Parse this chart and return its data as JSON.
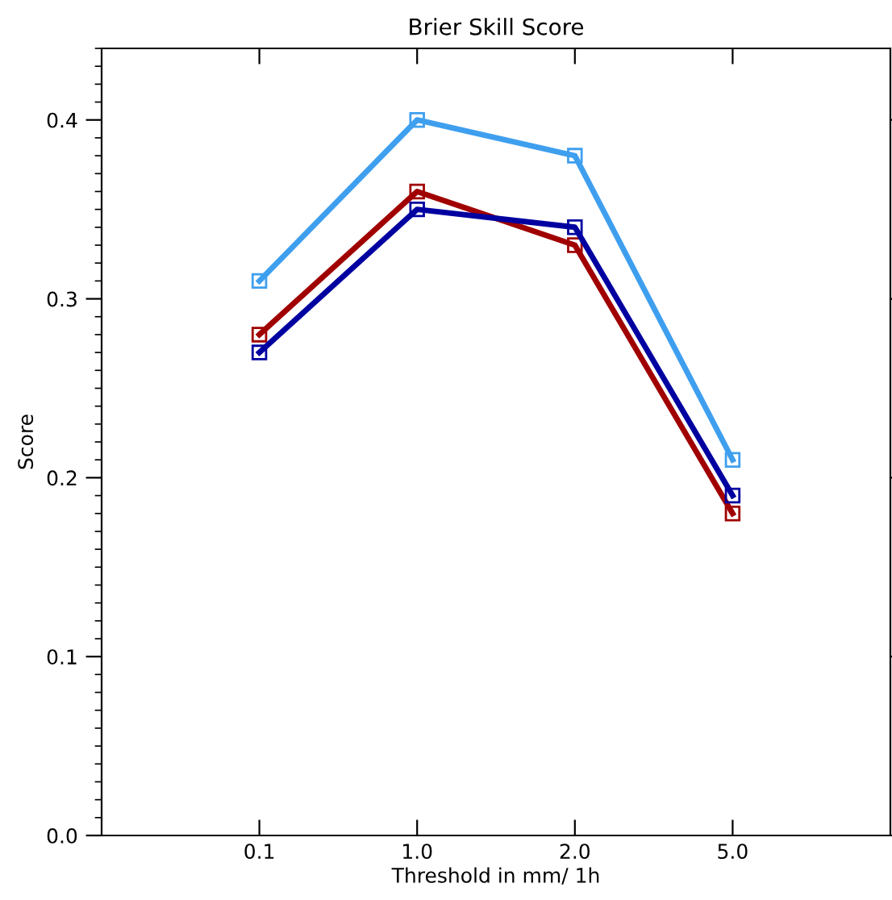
{
  "chart_data": {
    "type": "line",
    "title": "Brier Skill Score",
    "xlabel": "Threshold in mm/ 1h",
    "ylabel": "Score",
    "categories": [
      "0.1",
      "1.0",
      "2.0",
      "5.0"
    ],
    "series": [
      {
        "color": "#3f9fef",
        "values": [
          0.31,
          0.4,
          0.38,
          0.21
        ]
      },
      {
        "color": "#a00000",
        "values": [
          0.28,
          0.36,
          0.33,
          0.18
        ]
      },
      {
        "color": "#0000a0",
        "values": [
          0.27,
          0.35,
          0.34,
          0.19
        ]
      }
    ],
    "ylim": [
      0,
      0.44
    ],
    "yticks": [
      {
        "value": 0,
        "label": "0.0"
      },
      0.1,
      0.2,
      0.3,
      0.4
    ],
    "marker": "square",
    "line_style": "solid",
    "grid": false,
    "legend": false
  }
}
